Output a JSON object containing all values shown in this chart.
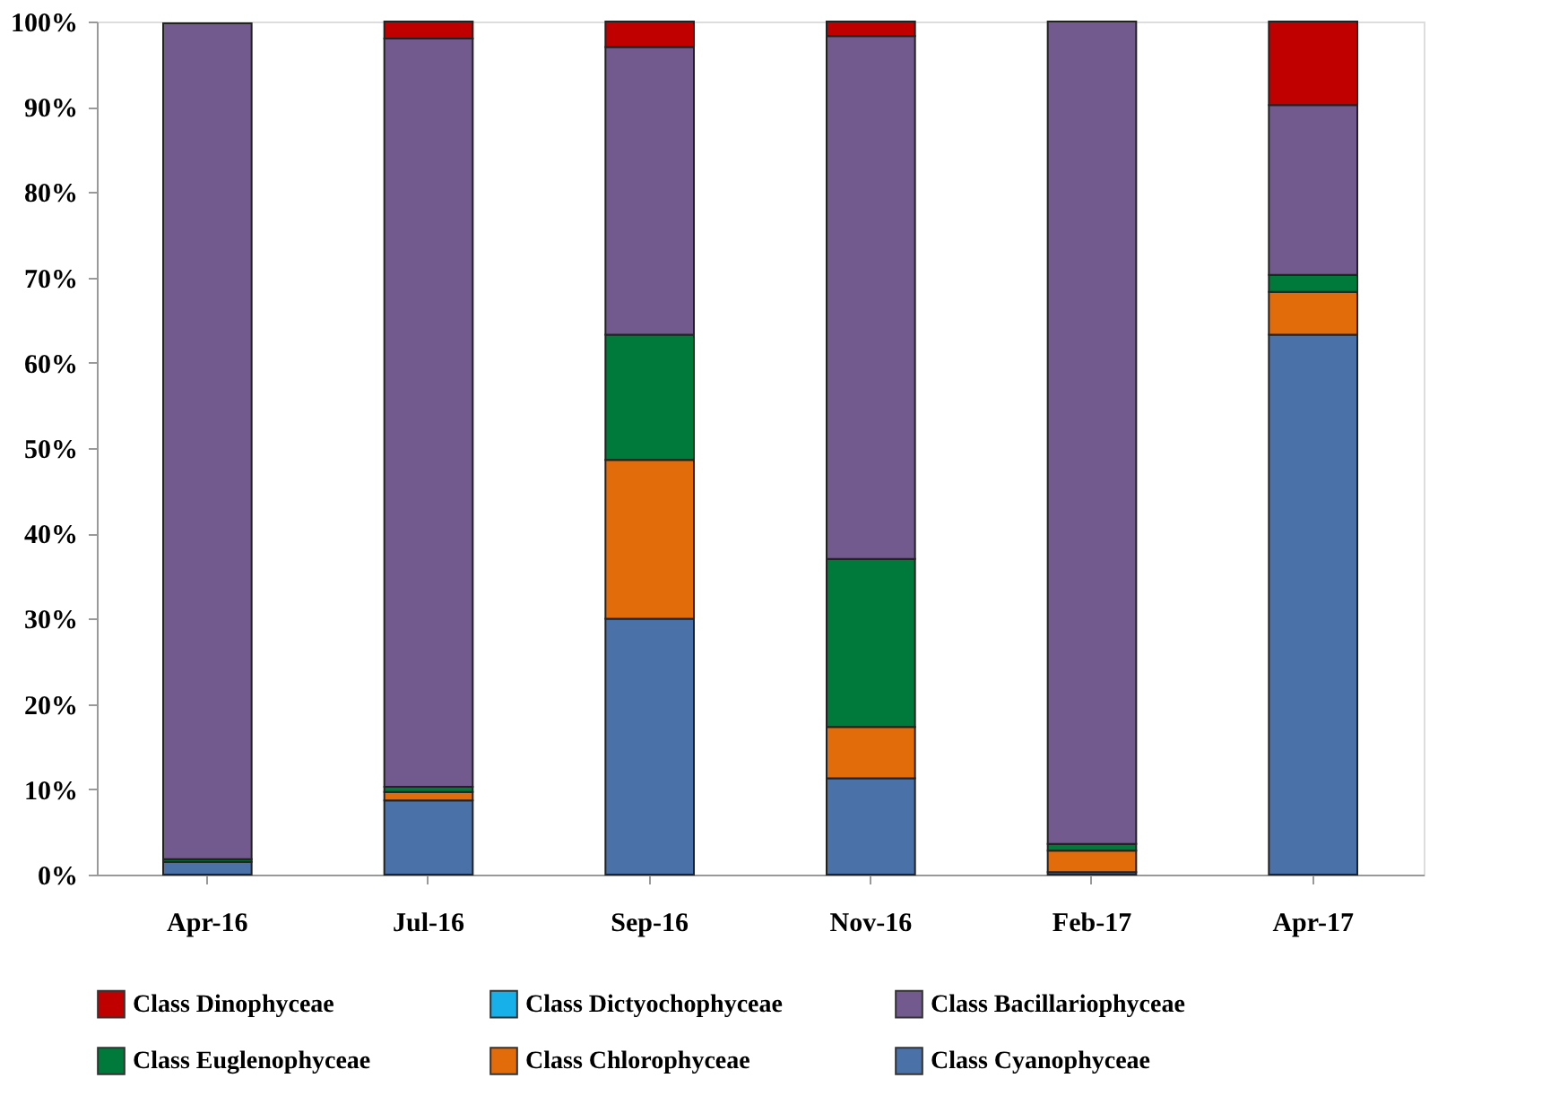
{
  "chart_data": {
    "type": "bar",
    "stacked": true,
    "categories": [
      "Apr-16",
      "Jul-16",
      "Sep-16",
      "Nov-16",
      "Feb-17",
      "Apr-17"
    ],
    "series": [
      {
        "name": "Class Cyanophyceae",
        "color": "#4a72a8",
        "values": [
          1.5,
          8.7,
          30.0,
          11.3,
          0.3,
          63.3
        ]
      },
      {
        "name": "Class Chlorophyceae",
        "color": "#e36c0a",
        "values": [
          0,
          1.0,
          18.6,
          6.0,
          2.5,
          5.0
        ]
      },
      {
        "name": "Class  Euglenophyceae",
        "color": "#007a3a",
        "values": [
          0.3,
          0.6,
          14.7,
          19.7,
          0.8,
          2.0
        ]
      },
      {
        "name": "Class Bacillariophyceae",
        "color": "#725a8e",
        "values": [
          98.0,
          87.7,
          33.7,
          61.3,
          96.4,
          19.9
        ]
      },
      {
        "name": "Class Dictyochophyceae",
        "color": "#17b0e8",
        "values": [
          0,
          0,
          0,
          0,
          0,
          0
        ]
      },
      {
        "name": "Class  Dinophyceae",
        "color": "#c00000",
        "values": [
          null,
          2.0,
          3.0,
          1.7,
          0,
          9.8
        ]
      }
    ],
    "ylim": [
      0,
      100
    ],
    "yticks": [
      {
        "value": 0,
        "label": "0%"
      },
      {
        "value": 10,
        "label": "10%"
      },
      {
        "value": 20,
        "label": "20%"
      },
      {
        "value": 30,
        "label": "30%"
      },
      {
        "value": 40,
        "label": "40%"
      },
      {
        "value": 50,
        "label": "50%"
      },
      {
        "value": 60,
        "label": "60%"
      },
      {
        "value": 70,
        "label": "70%"
      },
      {
        "value": 80,
        "label": "80%"
      },
      {
        "value": 90,
        "label": "90%"
      },
      {
        "value": 100,
        "label": "100%"
      }
    ],
    "grid": false,
    "legend": "bottom"
  }
}
